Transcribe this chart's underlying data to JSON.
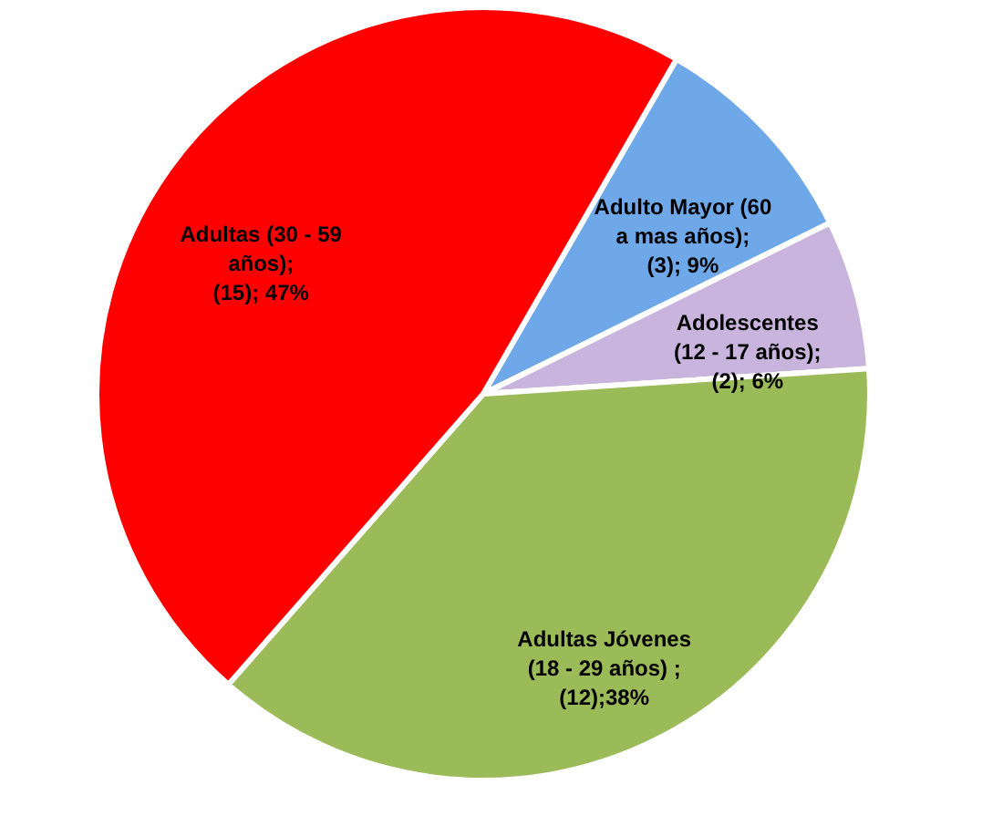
{
  "chart_data": {
    "type": "pie",
    "categories": [
      "Adulto Mayor (60 a mas años)",
      "Adolescentes  (12 - 17 años)",
      "Adultas Jóvenes (18 - 29 años)",
      "Adultas (30 - 59 años)"
    ],
    "values": [
      3,
      2,
      12,
      15
    ],
    "colors": [
      "#6fa8e8",
      "#c8b4dc",
      "#9bbb59",
      "#ff0000"
    ],
    "value_labels": [
      "; (3); 9%",
      "; (2); 6%",
      " ; (12);38%",
      "; (15); 47%"
    ],
    "legend": false
  }
}
